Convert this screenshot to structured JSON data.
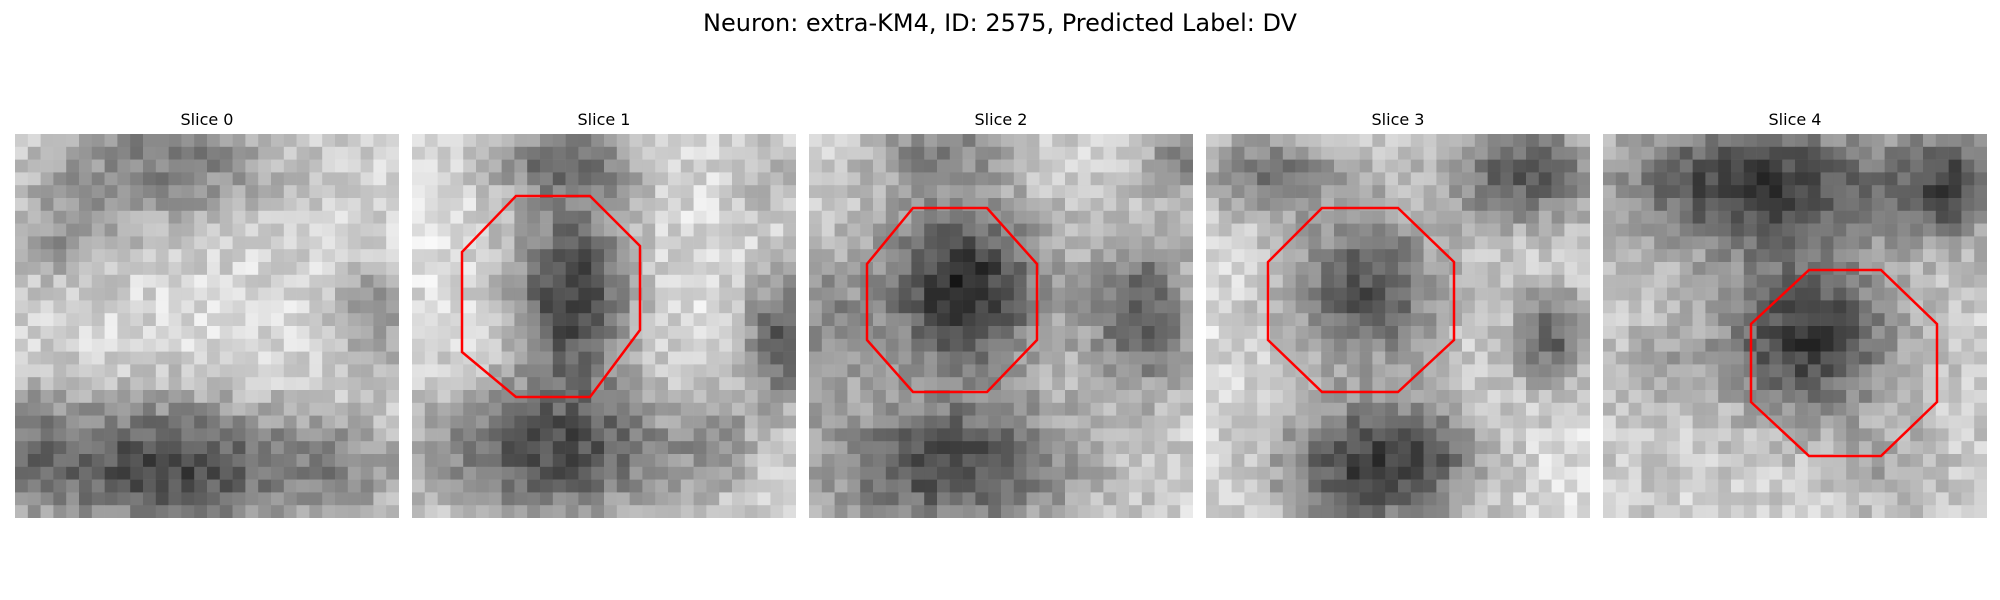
{
  "figure": {
    "title": "Neuron: extra-KM4, ID: 2575, Predicted Label: DV"
  },
  "panels": [
    {
      "title": "Slice 0",
      "roi": false
    },
    {
      "title": "Slice 1",
      "roi": true
    },
    {
      "title": "Slice 2",
      "roi": true
    },
    {
      "title": "Slice 3",
      "roi": true
    },
    {
      "title": "Slice 4",
      "roi": true
    }
  ],
  "colors": {
    "roi_outline": "#ff0000",
    "colormap": "gray"
  }
}
